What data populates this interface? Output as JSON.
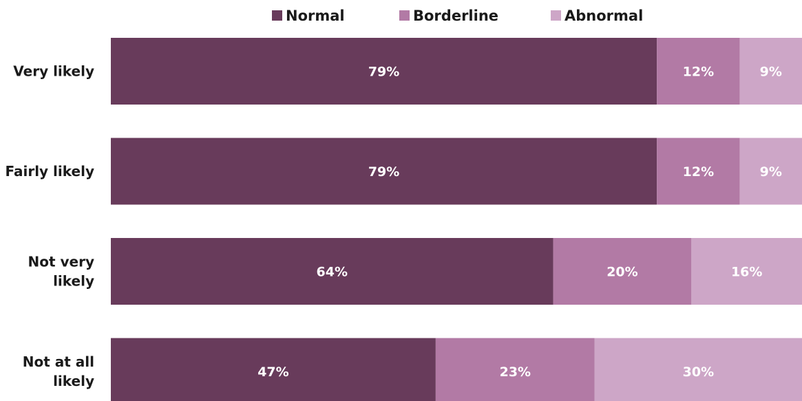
{
  "chart_data": {
    "type": "bar",
    "orientation": "horizontal",
    "stacked": true,
    "percent_stacked": true,
    "categories": [
      [
        "Very likely"
      ],
      [
        "Fairly likely"
      ],
      [
        "Not very",
        "likely"
      ],
      [
        "Not at all",
        "likely"
      ]
    ],
    "series": [
      {
        "name": "Normal",
        "color": "#683b5b",
        "values": [
          79,
          79,
          64,
          47
        ],
        "labels": [
          "79%",
          "79%",
          "64%",
          "47%"
        ]
      },
      {
        "name": "Borderline",
        "color": "#b27aa5",
        "values": [
          12,
          12,
          20,
          23
        ],
        "labels": [
          "12%",
          "12%",
          "20%",
          "23%"
        ]
      },
      {
        "name": "Abnormal",
        "color": "#cda6c7",
        "values": [
          9,
          9,
          16,
          30
        ],
        "labels": [
          "9%",
          "9%",
          "16%",
          "30%"
        ]
      }
    ],
    "title": "",
    "xlabel": "",
    "ylabel": "",
    "xlim": [
      0,
      100
    ],
    "legend_position": "top",
    "grid": false
  }
}
